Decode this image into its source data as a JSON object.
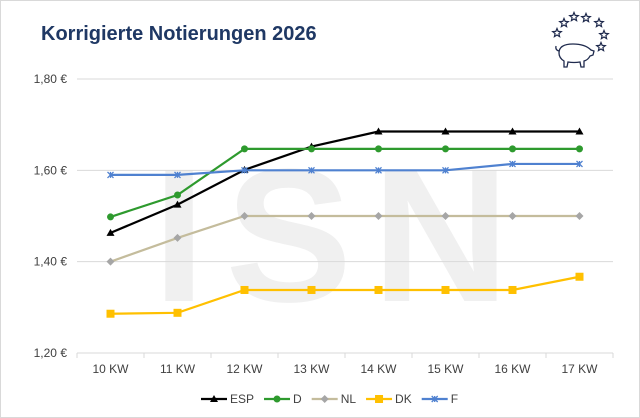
{
  "chart_data": {
    "type": "line",
    "title": "Korrigierte Notierungen 2026",
    "watermark": "ISN",
    "categories": [
      "10 KW",
      "11 KW",
      "12 KW",
      "13 KW",
      "14 KW",
      "15 KW",
      "16 KW",
      "17 KW"
    ],
    "ylim": [
      1.2,
      1.8
    ],
    "yticks": [
      1.2,
      1.4,
      1.6,
      1.8
    ],
    "ytick_labels": [
      "1,20 €",
      "1,40 €",
      "1,60 €",
      "1,80 €"
    ],
    "grid": true,
    "legend_position": "bottom",
    "series": [
      {
        "name": "ESP",
        "color": "#000000",
        "marker": "triangle",
        "values": [
          1.463,
          1.525,
          1.601,
          1.652,
          1.685,
          1.685,
          1.685,
          1.685
        ]
      },
      {
        "name": "D",
        "color": "#2e9a2e",
        "marker": "circle",
        "values": [
          1.498,
          1.546,
          1.647,
          1.647,
          1.647,
          1.647,
          1.647,
          1.647
        ]
      },
      {
        "name": "NL",
        "color": "#c4bc9c",
        "marker": "diamond",
        "values": [
          1.4,
          1.452,
          1.5,
          1.5,
          1.5,
          1.5,
          1.5,
          1.5
        ]
      },
      {
        "name": "DK",
        "color": "#ffc000",
        "marker": "square",
        "values": [
          1.286,
          1.288,
          1.338,
          1.338,
          1.338,
          1.338,
          1.338,
          1.367
        ]
      },
      {
        "name": "F",
        "color": "#4f81d0",
        "marker": "x",
        "values": [
          1.59,
          1.59,
          1.6,
          1.6,
          1.6,
          1.6,
          1.614,
          1.614
        ]
      }
    ]
  }
}
